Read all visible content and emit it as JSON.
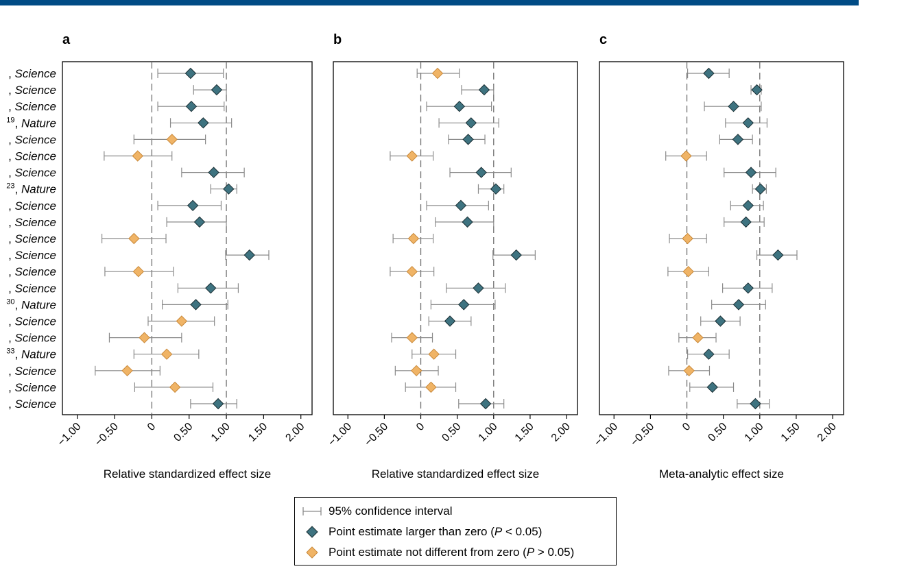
{
  "colors": {
    "significant": "#3e7380",
    "not_significant": "#f0b466",
    "ci": "#8a8a8a",
    "header_bar": "#004b85"
  },
  "axis": {
    "ticks": [
      -1.0,
      -0.5,
      0,
      0.5,
      1.0,
      1.5,
      2.0
    ],
    "tick_labels": [
      "−1.00",
      "−0.50",
      "0",
      "0.50",
      "1.00",
      "1.50",
      "2.00"
    ],
    "xlim": [
      -1.2,
      2.15
    ]
  },
  "row_labels": [
    {
      "prefix": ", ",
      "sup": "",
      "journal": "Science"
    },
    {
      "prefix": ", ",
      "sup": "",
      "journal": "Science"
    },
    {
      "prefix": ", ",
      "sup": "",
      "journal": "Science"
    },
    {
      "prefix": "",
      "sup": "19",
      "journal": "Nature"
    },
    {
      "prefix": ", ",
      "sup": "",
      "journal": "Science"
    },
    {
      "prefix": ", ",
      "sup": "",
      "journal": "Science"
    },
    {
      "prefix": ", ",
      "sup": "",
      "journal": "Science"
    },
    {
      "prefix": "",
      "sup": "23",
      "journal": "Nature"
    },
    {
      "prefix": ", ",
      "sup": "",
      "journal": "Science"
    },
    {
      "prefix": ", ",
      "sup": "",
      "journal": "Science"
    },
    {
      "prefix": ", ",
      "sup": "",
      "journal": "Science"
    },
    {
      "prefix": ", ",
      "sup": "",
      "journal": "Science"
    },
    {
      "prefix": ", ",
      "sup": "",
      "journal": "Science"
    },
    {
      "prefix": ", ",
      "sup": "",
      "journal": "Science"
    },
    {
      "prefix": "",
      "sup": "30",
      "journal": "Nature"
    },
    {
      "prefix": ", ",
      "sup": "",
      "journal": "Science"
    },
    {
      "prefix": ", ",
      "sup": "",
      "journal": "Science"
    },
    {
      "prefix": "",
      "sup": "33",
      "journal": "Nature"
    },
    {
      "prefix": ", ",
      "sup": "",
      "journal": "Science"
    },
    {
      "prefix": ", ",
      "sup": "",
      "journal": "Science"
    },
    {
      "prefix": ", ",
      "sup": "",
      "journal": "Science"
    }
  ],
  "chart_data": [
    {
      "type": "scatter",
      "panel": "a",
      "xlabel": "Relative standardized effect size",
      "reference_lines": [
        0,
        1
      ],
      "points": [
        {
          "est": 0.52,
          "lo": 0.08,
          "hi": 0.96,
          "sig": true
        },
        {
          "est": 0.87,
          "lo": 0.56,
          "hi": 1.0,
          "sig": true
        },
        {
          "est": 0.53,
          "lo": 0.08,
          "hi": 0.97,
          "sig": true
        },
        {
          "est": 0.69,
          "lo": 0.25,
          "hi": 1.07,
          "sig": true
        },
        {
          "est": 0.27,
          "lo": -0.24,
          "hi": 0.72,
          "sig": false
        },
        {
          "est": -0.19,
          "lo": -0.64,
          "hi": 0.27,
          "sig": false
        },
        {
          "est": 0.83,
          "lo": 0.4,
          "hi": 1.24,
          "sig": true
        },
        {
          "est": 1.03,
          "lo": 0.79,
          "hi": 1.14,
          "sig": true
        },
        {
          "est": 0.55,
          "lo": 0.08,
          "hi": 0.93,
          "sig": true
        },
        {
          "est": 0.64,
          "lo": 0.2,
          "hi": 1.0,
          "sig": true
        },
        {
          "est": -0.24,
          "lo": -0.67,
          "hi": 0.19,
          "sig": false
        },
        {
          "est": 1.31,
          "lo": 0.99,
          "hi": 1.57,
          "sig": true
        },
        {
          "est": -0.18,
          "lo": -0.63,
          "hi": 0.29,
          "sig": false
        },
        {
          "est": 0.79,
          "lo": 0.35,
          "hi": 1.16,
          "sig": true
        },
        {
          "est": 0.59,
          "lo": 0.14,
          "hi": 1.02,
          "sig": true
        },
        {
          "est": 0.4,
          "lo": -0.05,
          "hi": 0.84,
          "sig": false
        },
        {
          "est": -0.1,
          "lo": -0.57,
          "hi": 0.4,
          "sig": false
        },
        {
          "est": 0.2,
          "lo": -0.24,
          "hi": 0.63,
          "sig": false
        },
        {
          "est": -0.33,
          "lo": -0.76,
          "hi": 0.11,
          "sig": false
        },
        {
          "est": 0.31,
          "lo": -0.23,
          "hi": 0.82,
          "sig": false
        },
        {
          "est": 0.89,
          "lo": 0.52,
          "hi": 1.14,
          "sig": true
        }
      ]
    },
    {
      "type": "scatter",
      "panel": "b",
      "xlabel": "Relative standardized effect size",
      "reference_lines": [
        0,
        1
      ],
      "points": [
        {
          "est": 0.23,
          "lo": -0.05,
          "hi": 0.53,
          "sig": false
        },
        {
          "est": 0.87,
          "lo": 0.56,
          "hi": 1.0,
          "sig": true
        },
        {
          "est": 0.53,
          "lo": 0.08,
          "hi": 0.97,
          "sig": true
        },
        {
          "est": 0.69,
          "lo": 0.25,
          "hi": 1.07,
          "sig": true
        },
        {
          "est": 0.65,
          "lo": 0.38,
          "hi": 0.88,
          "sig": true
        },
        {
          "est": -0.12,
          "lo": -0.42,
          "hi": 0.17,
          "sig": false
        },
        {
          "est": 0.83,
          "lo": 0.4,
          "hi": 1.24,
          "sig": true
        },
        {
          "est": 1.03,
          "lo": 0.79,
          "hi": 1.14,
          "sig": true
        },
        {
          "est": 0.55,
          "lo": 0.08,
          "hi": 0.93,
          "sig": true
        },
        {
          "est": 0.64,
          "lo": 0.2,
          "hi": 1.0,
          "sig": true
        },
        {
          "est": -0.1,
          "lo": -0.38,
          "hi": 0.17,
          "sig": false
        },
        {
          "est": 1.31,
          "lo": 0.99,
          "hi": 1.57,
          "sig": true
        },
        {
          "est": -0.12,
          "lo": -0.42,
          "hi": 0.18,
          "sig": false
        },
        {
          "est": 0.79,
          "lo": 0.35,
          "hi": 1.16,
          "sig": true
        },
        {
          "est": 0.59,
          "lo": 0.14,
          "hi": 1.02,
          "sig": true
        },
        {
          "est": 0.4,
          "lo": 0.11,
          "hi": 0.69,
          "sig": true
        },
        {
          "est": -0.12,
          "lo": -0.4,
          "hi": 0.16,
          "sig": false
        },
        {
          "est": 0.18,
          "lo": -0.12,
          "hi": 0.48,
          "sig": false
        },
        {
          "est": -0.06,
          "lo": -0.35,
          "hi": 0.24,
          "sig": false
        },
        {
          "est": 0.14,
          "lo": -0.21,
          "hi": 0.48,
          "sig": false
        },
        {
          "est": 0.89,
          "lo": 0.52,
          "hi": 1.14,
          "sig": true
        }
      ]
    },
    {
      "type": "scatter",
      "panel": "c",
      "xlabel": "Meta-analytic effect size",
      "reference_lines": [
        0,
        1
      ],
      "points": [
        {
          "est": 0.3,
          "lo": 0.01,
          "hi": 0.58,
          "sig": true
        },
        {
          "est": 0.96,
          "lo": 0.88,
          "hi": 1.02,
          "sig": true
        },
        {
          "est": 0.64,
          "lo": 0.24,
          "hi": 1.02,
          "sig": true
        },
        {
          "est": 0.84,
          "lo": 0.53,
          "hi": 1.1,
          "sig": true
        },
        {
          "est": 0.7,
          "lo": 0.45,
          "hi": 0.9,
          "sig": true
        },
        {
          "est": -0.01,
          "lo": -0.29,
          "hi": 0.27,
          "sig": false
        },
        {
          "est": 0.88,
          "lo": 0.51,
          "hi": 1.22,
          "sig": true
        },
        {
          "est": 1.01,
          "lo": 0.9,
          "hi": 1.09,
          "sig": true
        },
        {
          "est": 0.84,
          "lo": 0.6,
          "hi": 1.05,
          "sig": true
        },
        {
          "est": 0.81,
          "lo": 0.51,
          "hi": 1.06,
          "sig": true
        },
        {
          "est": 0.01,
          "lo": -0.24,
          "hi": 0.27,
          "sig": false
        },
        {
          "est": 1.25,
          "lo": 0.96,
          "hi": 1.51,
          "sig": true
        },
        {
          "est": 0.02,
          "lo": -0.26,
          "hi": 0.3,
          "sig": false
        },
        {
          "est": 0.84,
          "lo": 0.49,
          "hi": 1.17,
          "sig": true
        },
        {
          "est": 0.71,
          "lo": 0.34,
          "hi": 1.08,
          "sig": true
        },
        {
          "est": 0.46,
          "lo": 0.19,
          "hi": 0.73,
          "sig": true
        },
        {
          "est": 0.15,
          "lo": -0.11,
          "hi": 0.4,
          "sig": false
        },
        {
          "est": 0.3,
          "lo": 0.01,
          "hi": 0.58,
          "sig": true
        },
        {
          "est": 0.03,
          "lo": -0.25,
          "hi": 0.31,
          "sig": false
        },
        {
          "est": 0.35,
          "lo": 0.04,
          "hi": 0.64,
          "sig": true
        },
        {
          "est": 0.94,
          "lo": 0.69,
          "hi": 1.13,
          "sig": true
        }
      ]
    }
  ],
  "legend": {
    "ci_label": "95% confidence interval",
    "sig_label_pre": "Point estimate larger than zero (",
    "sig_p": "P",
    "sig_label_post": " < 0.05)",
    "ns_label_pre": "Point estimate not different from zero (",
    "ns_p": "P",
    "ns_label_post": " > 0.05)"
  }
}
